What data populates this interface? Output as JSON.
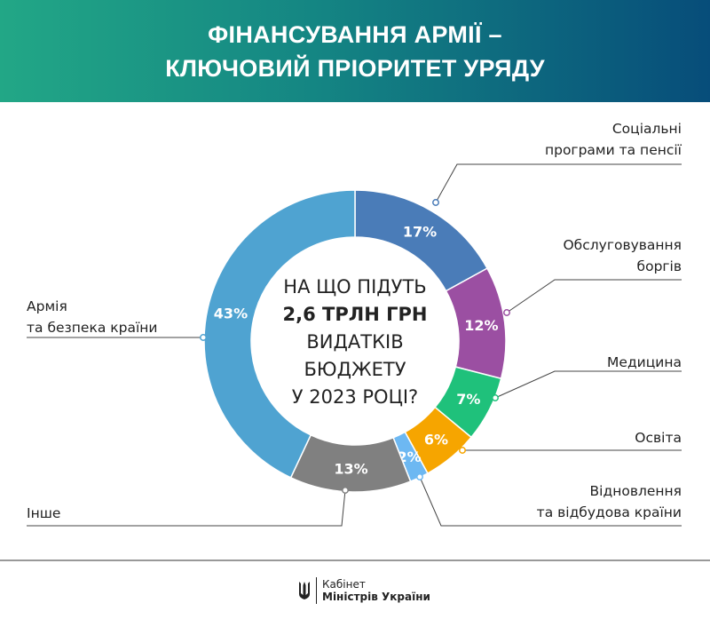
{
  "header": {
    "line1": "ФІНАНСУВАННЯ АРМІЇ –",
    "line2": "КЛЮЧОВИЙ ПРІОРИТЕТ УРЯДУ"
  },
  "center": {
    "line1": "НА ЩО ПІДУТЬ",
    "line2": "2,6 ТРЛН ГРН",
    "line3": "ВИДАТКІВ",
    "line4": "БЮДЖЕТУ",
    "line5": "У 2023 РОЦІ?"
  },
  "chart_data": {
    "type": "pie",
    "title": "ФІНАНСУВАННЯ АРМІЇ – КЛЮЧОВИЙ ПРІОРИТЕТ УРЯДУ",
    "unit": "%",
    "slices": [
      {
        "label": "Соціальні програми та пенсії",
        "label_lines": [
          "Соціальні",
          "програми та пенсії"
        ],
        "value": 17,
        "text": "17%",
        "color": "#4a7cb8"
      },
      {
        "label": "Обслуговування боргів",
        "label_lines": [
          "Обслуговування",
          "боргів"
        ],
        "value": 12,
        "text": "12%",
        "color": "#9b4fa2"
      },
      {
        "label": "Медицина",
        "label_lines": [
          "Медицина"
        ],
        "value": 7,
        "text": "7%",
        "color": "#1fc17b"
      },
      {
        "label": "Освіта",
        "label_lines": [
          "Освіта"
        ],
        "value": 6,
        "text": "6%",
        "color": "#f6a500"
      },
      {
        "label": "Відновлення та відбудова країни",
        "label_lines": [
          "Відновлення",
          "та відбудова країни"
        ],
        "value": 2,
        "text": "2%",
        "color": "#6db8f2"
      },
      {
        "label": "Інше",
        "label_lines": [
          "Інше"
        ],
        "value": 13,
        "text": "13%",
        "color": "#808080"
      },
      {
        "label": "Армія та безпека країни",
        "label_lines": [
          "Армія",
          "та безпека країни"
        ],
        "value": 43,
        "text": "43%",
        "color": "#4fa3d1"
      }
    ]
  },
  "footer": {
    "logo_line1": "Кабінет",
    "logo_line2": "Міністрів України"
  }
}
